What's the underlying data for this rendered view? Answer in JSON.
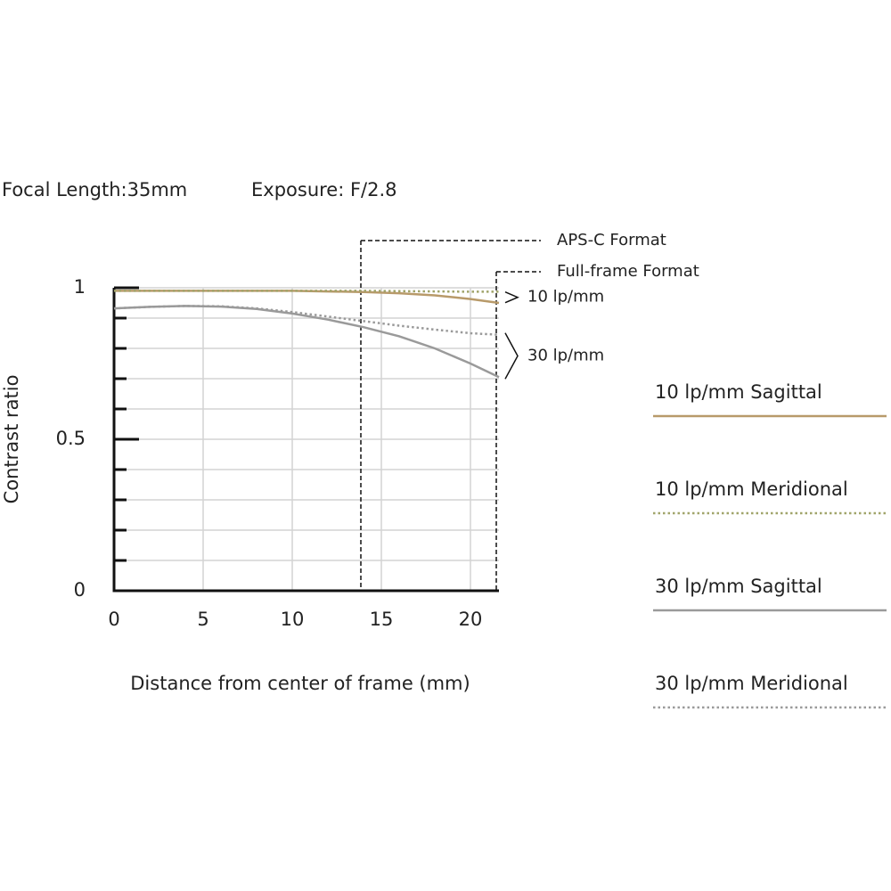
{
  "chart_data": {
    "type": "line",
    "title": "Focal Length:35mm",
    "subtitle": "Exposure: F/2.8",
    "x_label": "Distance from center of frame (mm)",
    "y_label": "Contrast ratio",
    "xlim": [
      0,
      21.6
    ],
    "ylim": [
      0,
      1
    ],
    "xticks": [
      0,
      5,
      10,
      15,
      20
    ],
    "yticks": [
      0,
      0.5,
      1
    ],
    "y_minor_ticks": [
      0.1,
      0.2,
      0.3,
      0.4,
      0.6,
      0.7,
      0.8,
      0.9
    ],
    "grid": true,
    "x": [
      0,
      2,
      4,
      6,
      8,
      10,
      12,
      14,
      16,
      18,
      20,
      21.6
    ],
    "series": [
      {
        "name": "10 lp/mm Sagittal",
        "color": "#b89a6a",
        "style": "solid",
        "values": [
          0.99,
          0.99,
          0.99,
          0.99,
          0.99,
          0.99,
          0.988,
          0.986,
          0.982,
          0.975,
          0.963,
          0.95
        ]
      },
      {
        "name": "10 lp/mm Meridional",
        "color": "#a0a46a",
        "style": "dotted",
        "values": [
          0.99,
          0.99,
          0.99,
          0.99,
          0.99,
          0.99,
          0.99,
          0.99,
          0.989,
          0.988,
          0.987,
          0.987
        ]
      },
      {
        "name": "30 lp/mm Sagittal",
        "color": "#9a9a9a",
        "style": "solid",
        "values": [
          0.932,
          0.937,
          0.94,
          0.938,
          0.93,
          0.915,
          0.895,
          0.87,
          0.84,
          0.8,
          0.75,
          0.705
        ]
      },
      {
        "name": "30 lp/mm Meridional",
        "color": "#9a9a9a",
        "style": "dotted",
        "values": [
          0.932,
          0.937,
          0.94,
          0.939,
          0.932,
          0.92,
          0.905,
          0.89,
          0.875,
          0.862,
          0.85,
          0.845
        ]
      }
    ],
    "markers": [
      {
        "label": "APS-C Format",
        "x": 13.85
      },
      {
        "label": "Full-frame Format",
        "x": 21.45
      }
    ],
    "annotations": [
      "10 lp/mm",
      "30 lp/mm"
    ]
  }
}
